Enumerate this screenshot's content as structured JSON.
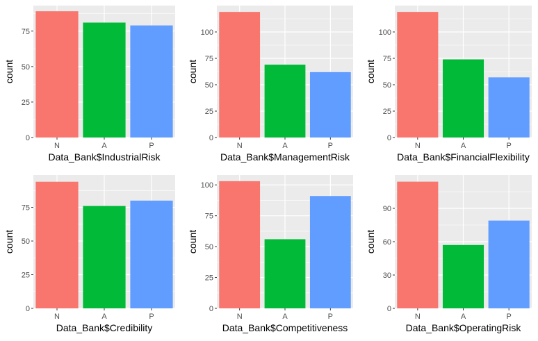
{
  "colors": {
    "N": "#F8766D",
    "A": "#00BA38",
    "P": "#619CFF",
    "panel": "#EBEBEB",
    "grid": "#FFFFFF"
  },
  "chart_data": [
    {
      "type": "bar",
      "categories": [
        "N",
        "A",
        "P"
      ],
      "values": [
        89,
        81,
        79
      ],
      "xlabel": "Data_Bank$IndustrialRisk",
      "ylabel": "count",
      "yticks": [
        0,
        25,
        50,
        75
      ],
      "ylim": [
        0,
        93
      ],
      "grid": true
    },
    {
      "type": "bar",
      "categories": [
        "N",
        "A",
        "P"
      ],
      "values": [
        119,
        69,
        62
      ],
      "xlabel": "Data_Bank$ManagementRisk",
      "ylabel": "count",
      "yticks": [
        0,
        25,
        50,
        75,
        100
      ],
      "ylim": [
        0,
        125
      ],
      "grid": true
    },
    {
      "type": "bar",
      "categories": [
        "N",
        "A",
        "P"
      ],
      "values": [
        119,
        74,
        57
      ],
      "xlabel": "Data_Bank$FinancialFlexibility",
      "ylabel": "count",
      "yticks": [
        0,
        25,
        50,
        75,
        100
      ],
      "ylim": [
        0,
        125
      ],
      "grid": true
    },
    {
      "type": "bar",
      "categories": [
        "N",
        "A",
        "P"
      ],
      "values": [
        94,
        76,
        80
      ],
      "xlabel": "Data_Bank$Credibility",
      "ylabel": "count",
      "yticks": [
        0,
        25,
        50,
        75
      ],
      "ylim": [
        0,
        99
      ],
      "grid": true
    },
    {
      "type": "bar",
      "categories": [
        "N",
        "A",
        "P"
      ],
      "values": [
        103,
        56,
        91
      ],
      "xlabel": "Data_Bank$Competitiveness",
      "ylabel": "count",
      "yticks": [
        0,
        25,
        50,
        75,
        100
      ],
      "ylim": [
        0,
        108
      ],
      "grid": true
    },
    {
      "type": "bar",
      "categories": [
        "N",
        "A",
        "P"
      ],
      "values": [
        114,
        57,
        79
      ],
      "xlabel": "Data_Bank$OperatingRisk",
      "ylabel": "count",
      "yticks": [
        0,
        30,
        60,
        90
      ],
      "ylim": [
        0,
        120
      ],
      "grid": true
    }
  ]
}
